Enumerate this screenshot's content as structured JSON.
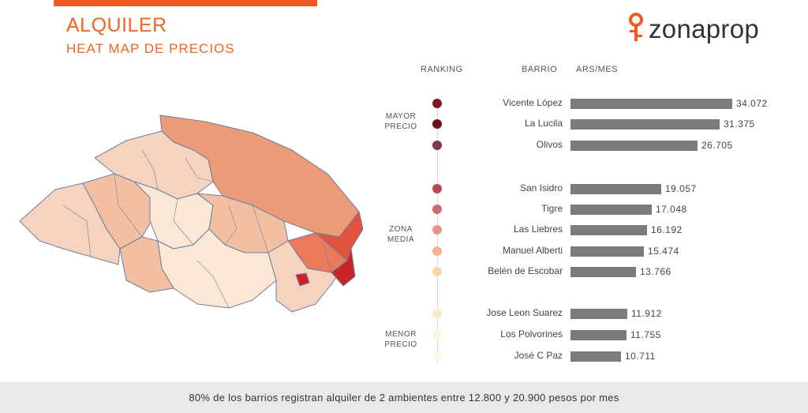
{
  "header": {
    "title": "ALQUILER",
    "subtitle": "HEAT MAP DE PRECIOS",
    "logo_text": "zonaprop",
    "accent_color": "#f15a22"
  },
  "columns": {
    "ranking": "RANKING",
    "barrio": "BARRIO",
    "price": "ARS/MES"
  },
  "groups": [
    {
      "line1": "MAYOR",
      "line2": "PRECIO"
    },
    {
      "line1": "ZONA",
      "line2": "MEDIA"
    },
    {
      "line1": "MENOR",
      "line2": "PRECIO"
    }
  ],
  "chart_data": {
    "type": "bar",
    "orientation": "horizontal",
    "categories": [
      "Vicente López",
      "La Lucila",
      "Olivos",
      "San Isidro",
      "Tigre",
      "Las Liebres",
      "Manuel Alberti",
      "Belén de Escobar",
      "Jose Leon Suarez",
      "Los Polvorines",
      "José C Paz"
    ],
    "values": [
      34072,
      31375,
      26705,
      19057,
      17048,
      16192,
      15474,
      13766,
      11912,
      11755,
      10711
    ],
    "value_labels": [
      "34.072",
      "31.375",
      "26.705",
      "19.057",
      "17.048",
      "16.192",
      "15.474",
      "13.766",
      "11.912",
      "11.755",
      "10.711"
    ],
    "rank_colors": [
      "#7b1a24",
      "#6e1219",
      "#7c3a4c",
      "#b24a56",
      "#cc6a74",
      "#e8928a",
      "#f2b28e",
      "#f7d7ab",
      "#fae9c8",
      "#fdf3e0",
      "#fdf6ea"
    ],
    "bar_color": "#7b7b7b",
    "xlim": [
      0,
      34072
    ]
  },
  "map": {
    "colors": {
      "darkest": "#c9242b",
      "dark": "#e0533c",
      "mid": "#ea7a5a",
      "orange": "#ec9b79",
      "light": "#f2bfa3",
      "lighter": "#f5d3bf",
      "palest": "#fbe7d6"
    },
    "border_color": "#6f7f98"
  },
  "footer": {
    "text": "80% de los barrios registran alquiler  de 2 ambientes entre 12.800 y 20.900 pesos por mes"
  }
}
